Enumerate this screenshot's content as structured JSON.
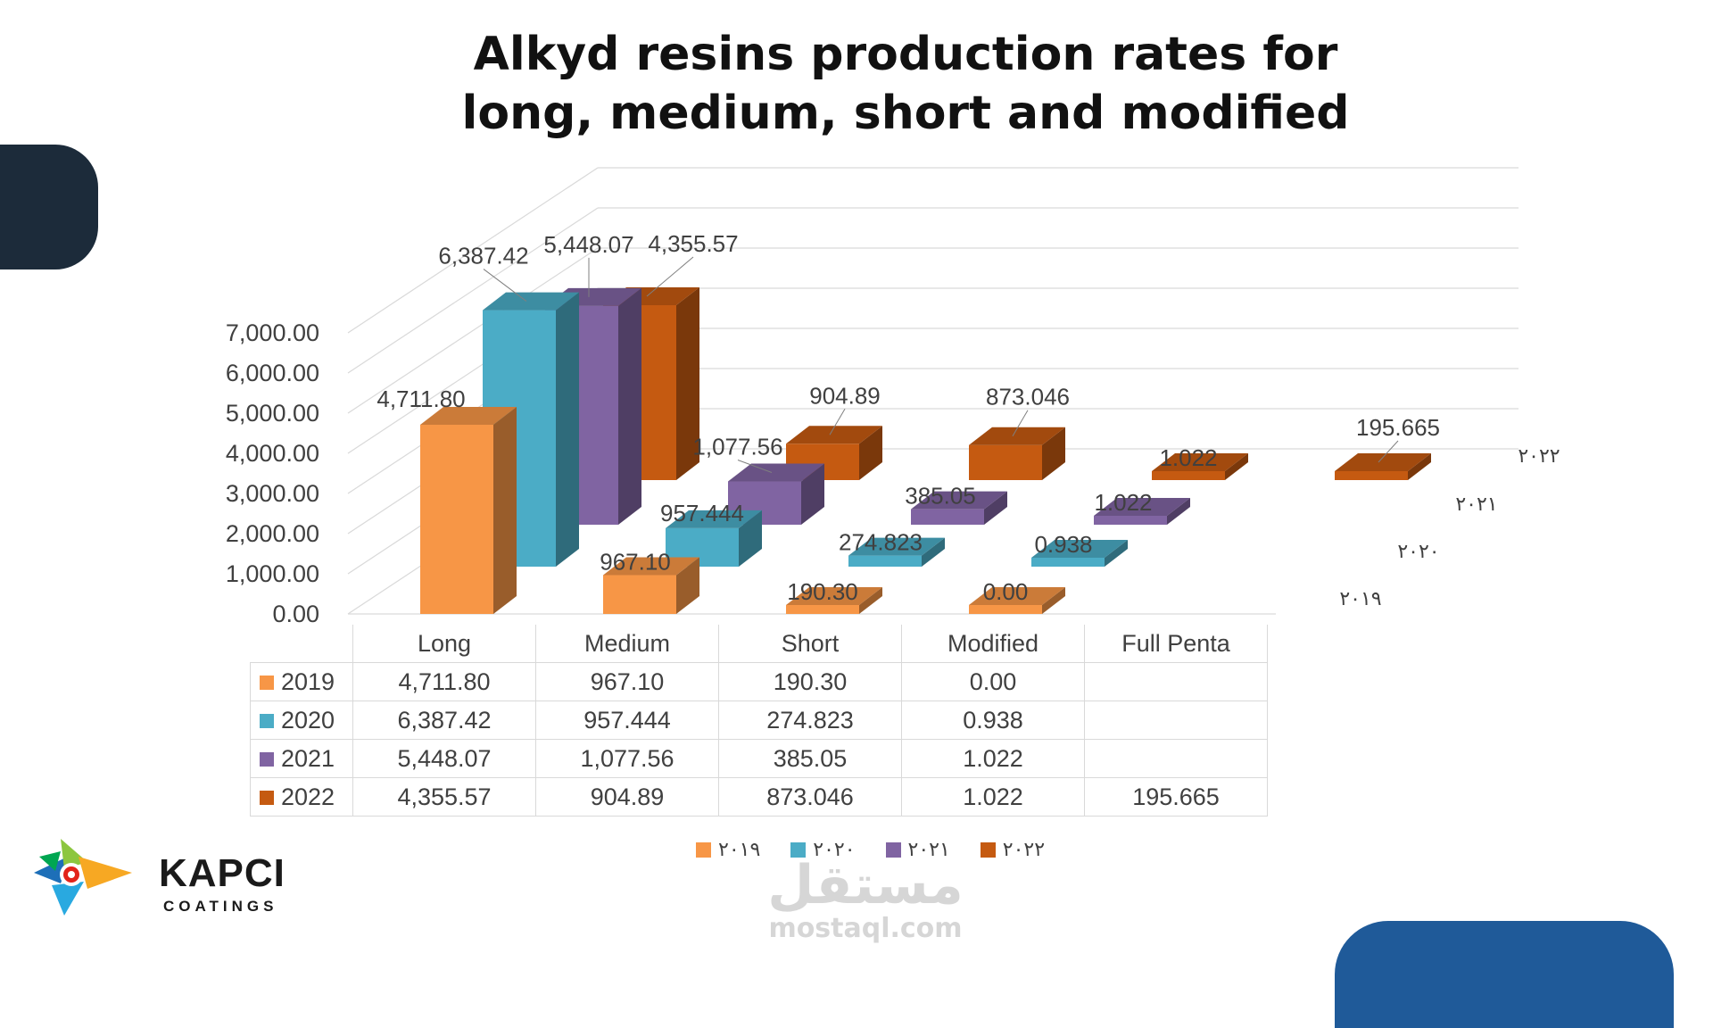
{
  "title_line1": "Alkyd resins production rates for",
  "title_line2": "long, medium, short and modified",
  "chart_data": {
    "type": "bar",
    "title": "Alkyd resins production rates for long, medium, short and modified",
    "categories": [
      "Long",
      "Medium",
      "Short",
      "Modified",
      "Full Penta"
    ],
    "series": [
      {
        "name": "2019",
        "values": [
          4711.8,
          967.1,
          190.3,
          0.0,
          null
        ],
        "labels": [
          "4,711.80",
          "967.10",
          "190.30",
          "0.00",
          ""
        ],
        "color": "#f79646"
      },
      {
        "name": "2020",
        "values": [
          6387.42,
          957.444,
          274.823,
          0.938,
          null
        ],
        "labels": [
          "6,387.42",
          "957.444",
          "274.823",
          "0.938",
          ""
        ],
        "color": "#4bacc6"
      },
      {
        "name": "2021",
        "values": [
          5448.07,
          1077.56,
          385.05,
          1.022,
          null
        ],
        "labels": [
          "5,448.07",
          "1,077.56",
          "385.05",
          "1.022",
          ""
        ],
        "color": "#8064a2"
      },
      {
        "name": "2022",
        "values": [
          4355.57,
          904.89,
          873.046,
          1.022,
          195.665
        ],
        "labels": [
          "4,355.57",
          "904.89",
          "873.046",
          "1.022",
          "195.665"
        ],
        "color": "#c55a11"
      }
    ],
    "depth_labels": [
      "٢٠١٩",
      "٢٠٢٠",
      "٢٠٢١",
      "٢٠٢٢"
    ],
    "y_ticks": [
      "0.00",
      "1,000.00",
      "2,000.00",
      "3,000.00",
      "4,000.00",
      "5,000.00",
      "6,000.00",
      "7,000.00"
    ],
    "ylim": [
      0,
      7000
    ],
    "legend_position": "bottom",
    "grid": true,
    "data_table": true
  },
  "table": {
    "columns": [
      "Long",
      "Medium",
      "Short",
      "Modified",
      "Full Penta"
    ],
    "rows": [
      {
        "year": "2019",
        "color": "#f79646",
        "cells": [
          "4,711.80",
          "967.10",
          "190.30",
          "0.00",
          ""
        ]
      },
      {
        "year": "2020",
        "color": "#4bacc6",
        "cells": [
          "6,387.42",
          "957.444",
          "274.823",
          "0.938",
          ""
        ]
      },
      {
        "year": "2021",
        "color": "#8064a2",
        "cells": [
          "5,448.07",
          "1,077.56",
          "385.05",
          "1.022",
          ""
        ]
      },
      {
        "year": "2022",
        "color": "#c55a11",
        "cells": [
          "4,355.57",
          "904.89",
          "873.046",
          "1.022",
          "195.665"
        ]
      }
    ]
  },
  "legend": [
    {
      "label": "٢٠١٩",
      "color": "#f79646"
    },
    {
      "label": "٢٠٢٠",
      "color": "#4bacc6"
    },
    {
      "label": "٢٠٢١",
      "color": "#8064a2"
    },
    {
      "label": "٢٠٢٢",
      "color": "#c55a11"
    }
  ],
  "logo": {
    "name": "KAPCI",
    "sub": "COATINGS"
  },
  "watermark": {
    "arabic": "مستقل",
    "latin": "mostaql.com"
  }
}
